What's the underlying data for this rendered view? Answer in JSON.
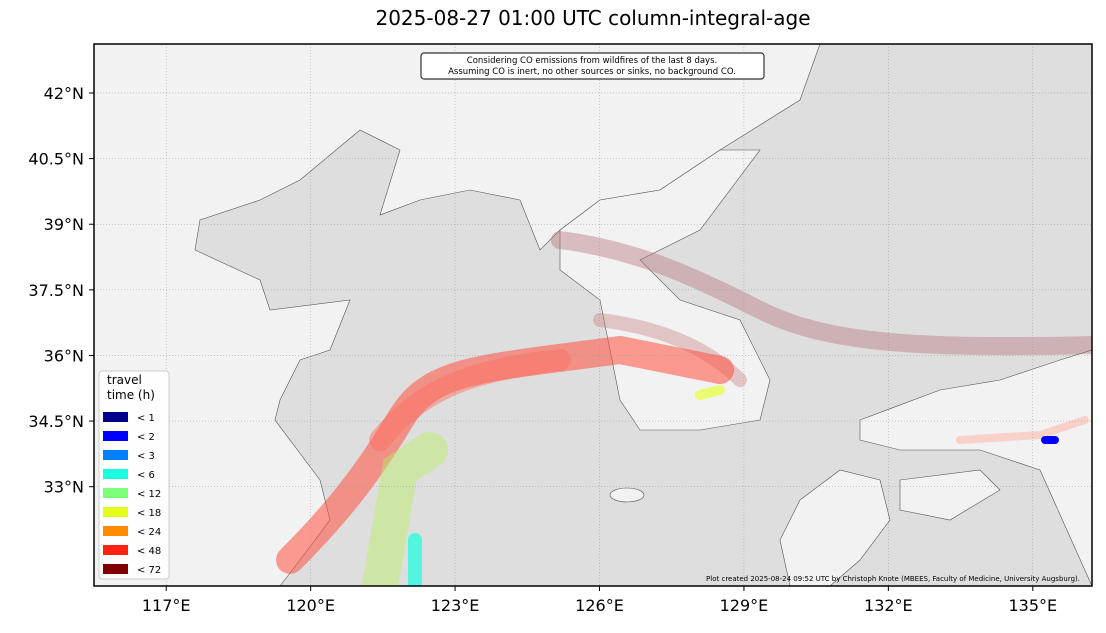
{
  "chart_data": {
    "type": "map",
    "title": "2025-08-27 01:00 UTC column-integral-age",
    "xlim": [
      115.5,
      136.23
    ],
    "ylim": [
      30.73,
      43.12
    ],
    "xticks": [
      {
        "value": 117,
        "label": "117°E"
      },
      {
        "value": 120,
        "label": "120°E"
      },
      {
        "value": 123,
        "label": "123°E"
      },
      {
        "value": 126,
        "label": "126°E"
      },
      {
        "value": 129,
        "label": "129°E"
      },
      {
        "value": 132,
        "label": "132°E"
      },
      {
        "value": 135,
        "label": "135°E"
      }
    ],
    "yticks": [
      {
        "value": 33,
        "label": "33°N"
      },
      {
        "value": 34.5,
        "label": "34.5°N"
      },
      {
        "value": 36,
        "label": "36°N"
      },
      {
        "value": 37.5,
        "label": "37.5°N"
      },
      {
        "value": 39,
        "label": "39°N"
      },
      {
        "value": 40.5,
        "label": "40.5°N"
      },
      {
        "value": 42,
        "label": "42°N"
      }
    ],
    "grid": true,
    "note": [
      "Considering CO emissions from wildfires of the last 8 days.",
      "Assuming CO is inert, no other sources or sinks, no background CO."
    ],
    "credit": "Plot created 2025-08-24 09:52 UTC by Christoph Knote (MBEES, Faculty of Medicine, University Augsburg).",
    "legend": {
      "title": [
        "travel",
        "time (h)"
      ],
      "items": [
        {
          "label": "< 1",
          "color": "#00008b"
        },
        {
          "label": "< 2",
          "color": "#0000ff"
        },
        {
          "label": "< 3",
          "color": "#0080ff"
        },
        {
          "label": "< 6",
          "color": "#19ffe0"
        },
        {
          "label": "< 12",
          "color": "#7dff7a"
        },
        {
          "label": "< 18",
          "color": "#e5ff1a"
        },
        {
          "label": "< 24",
          "color": "#ff8c00"
        },
        {
          "label": "< 48",
          "color": "#ff2010"
        },
        {
          "label": "< 72",
          "color": "#800000"
        }
      ]
    }
  }
}
